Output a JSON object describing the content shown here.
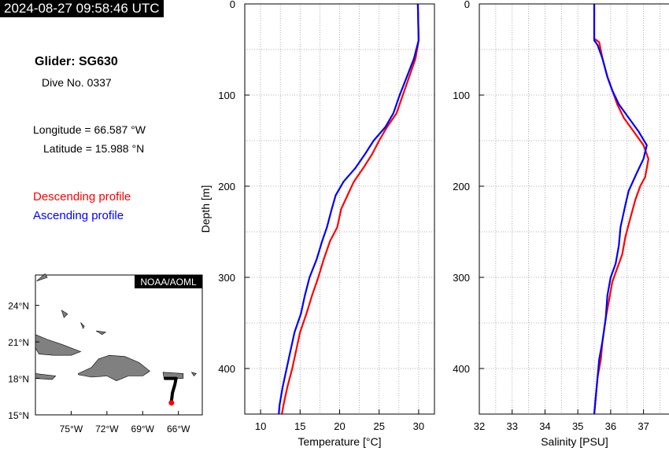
{
  "timestamp": "2024-08-27 09:58:46 UTC",
  "glider": {
    "title": "Glider: SG630",
    "dive": "Dive No. 0337"
  },
  "position": {
    "longitude": "Longitude = 66.587 °W",
    "latitude": "Latitude = 15.988 °N"
  },
  "legend": {
    "descending": "Descending profile",
    "ascending": "Ascending profile",
    "descending_color": "#ff0000",
    "ascending_color": "#0000ff"
  },
  "map": {
    "badge": "NOAA/AOML",
    "lat_ticks": [
      {
        "v": 15,
        "label": "15°N"
      },
      {
        "v": 18,
        "label": "18°N"
      },
      {
        "v": 21,
        "label": "21°N"
      },
      {
        "v": 24,
        "label": "24°N"
      }
    ],
    "lon_ticks": [
      {
        "v": -75,
        "label": "75°W"
      },
      {
        "v": -72,
        "label": "72°W"
      },
      {
        "v": -69,
        "label": "69°W"
      },
      {
        "v": -66,
        "label": "66°W"
      }
    ],
    "lon_range": [
      -78,
      -64
    ],
    "lat_range": [
      15,
      26.5
    ],
    "land_color": "#808080",
    "track_color": "#000000",
    "glider_position": [
      -66.587,
      15.988
    ],
    "glider_color": "#ff0000"
  },
  "chart_data": [
    {
      "type": "line",
      "xlabel": "Temperature [°C]",
      "ylabel": "Depth [m]",
      "xlim": [
        8,
        32
      ],
      "ylim": [
        450,
        0
      ],
      "xticks": [
        10,
        15,
        20,
        25,
        30
      ],
      "yticks": [
        0,
        100,
        200,
        300,
        400
      ],
      "grid": true,
      "series": [
        {
          "name": "Descending profile",
          "color": "#ff0000",
          "points": [
            [
              29.9,
              0
            ],
            [
              30.0,
              40
            ],
            [
              29.6,
              60
            ],
            [
              28.8,
              80
            ],
            [
              28.0,
              100
            ],
            [
              27.2,
              120
            ],
            [
              26.0,
              135
            ],
            [
              25.0,
              150
            ],
            [
              24.1,
              165
            ],
            [
              23.0,
              180
            ],
            [
              21.8,
              195
            ],
            [
              21.0,
              210
            ],
            [
              20.2,
              225
            ],
            [
              19.7,
              245
            ],
            [
              18.8,
              260
            ],
            [
              18.0,
              280
            ],
            [
              17.3,
              300
            ],
            [
              16.5,
              320
            ],
            [
              15.8,
              340
            ],
            [
              15.0,
              360
            ],
            [
              14.5,
              380
            ],
            [
              14.0,
              400
            ],
            [
              13.4,
              420
            ],
            [
              12.9,
              440
            ],
            [
              12.7,
              450
            ]
          ]
        },
        {
          "name": "Ascending profile",
          "color": "#0000ff",
          "points": [
            [
              29.9,
              0
            ],
            [
              30.0,
              40
            ],
            [
              29.4,
              60
            ],
            [
              28.5,
              80
            ],
            [
              27.6,
              100
            ],
            [
              26.8,
              120
            ],
            [
              25.8,
              135
            ],
            [
              24.3,
              150
            ],
            [
              23.2,
              165
            ],
            [
              22.0,
              180
            ],
            [
              20.5,
              195
            ],
            [
              19.5,
              210
            ],
            [
              19.0,
              225
            ],
            [
              18.4,
              245
            ],
            [
              17.8,
              260
            ],
            [
              17.1,
              280
            ],
            [
              16.2,
              300
            ],
            [
              15.6,
              320
            ],
            [
              15.1,
              340
            ],
            [
              14.3,
              360
            ],
            [
              13.8,
              380
            ],
            [
              13.3,
              400
            ],
            [
              12.8,
              420
            ],
            [
              12.4,
              440
            ],
            [
              12.3,
              450
            ]
          ]
        }
      ]
    },
    {
      "type": "line",
      "xlabel": "Salinity [PSU]",
      "ylabel": "",
      "xlim": [
        32,
        37.8
      ],
      "ylim": [
        450,
        0
      ],
      "xticks": [
        32,
        33,
        34,
        35,
        36,
        37
      ],
      "yticks": [
        0,
        100,
        200,
        300,
        400
      ],
      "grid": true,
      "series": [
        {
          "name": "Descending profile",
          "color": "#ff0000",
          "points": [
            [
              35.5,
              0
            ],
            [
              35.5,
              38
            ],
            [
              35.65,
              42
            ],
            [
              35.75,
              60
            ],
            [
              35.9,
              80
            ],
            [
              36.05,
              95
            ],
            [
              36.2,
              110
            ],
            [
              36.4,
              125
            ],
            [
              36.7,
              140
            ],
            [
              37.0,
              155
            ],
            [
              37.15,
              170
            ],
            [
              37.05,
              190
            ],
            [
              36.9,
              200
            ],
            [
              36.75,
              215
            ],
            [
              36.6,
              235
            ],
            [
              36.45,
              255
            ],
            [
              36.35,
              275
            ],
            [
              36.2,
              290
            ],
            [
              36.05,
              305
            ],
            [
              35.95,
              325
            ],
            [
              35.85,
              345
            ],
            [
              35.75,
              370
            ],
            [
              35.7,
              390
            ],
            [
              35.6,
              410
            ],
            [
              35.55,
              430
            ],
            [
              35.5,
              450
            ]
          ]
        },
        {
          "name": "Ascending profile",
          "color": "#0000ff",
          "points": [
            [
              35.5,
              0
            ],
            [
              35.5,
              40
            ],
            [
              35.6,
              45
            ],
            [
              35.75,
              60
            ],
            [
              35.9,
              80
            ],
            [
              36.05,
              95
            ],
            [
              36.25,
              110
            ],
            [
              36.55,
              125
            ],
            [
              36.85,
              140
            ],
            [
              37.1,
              155
            ],
            [
              37.0,
              170
            ],
            [
              36.8,
              185
            ],
            [
              36.55,
              205
            ],
            [
              36.45,
              220
            ],
            [
              36.3,
              245
            ],
            [
              36.25,
              265
            ],
            [
              36.15,
              285
            ],
            [
              36.0,
              300
            ],
            [
              35.9,
              320
            ],
            [
              35.85,
              345
            ],
            [
              35.75,
              370
            ],
            [
              35.65,
              390
            ],
            [
              35.6,
              410
            ],
            [
              35.55,
              430
            ],
            [
              35.5,
              450
            ]
          ]
        }
      ]
    }
  ]
}
